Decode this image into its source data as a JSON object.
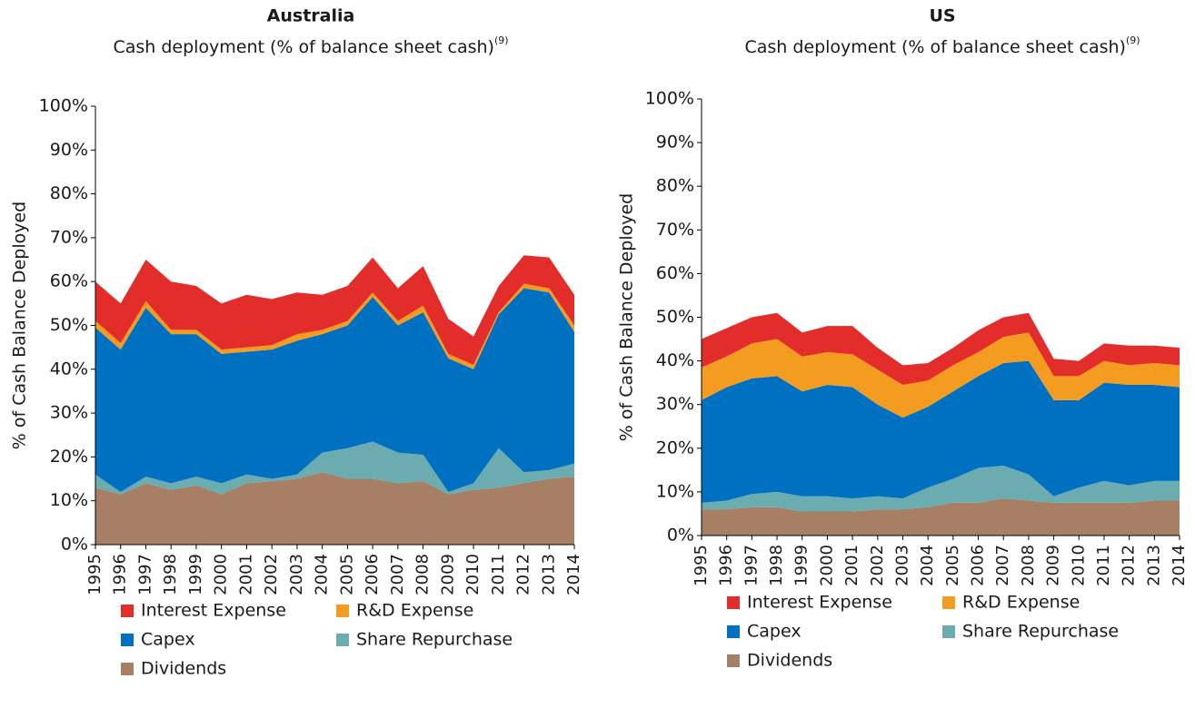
{
  "chart_data": [
    {
      "type": "stacked_area",
      "title": "Australia",
      "subtitle": "Cash deployment (% of balance sheet cash)",
      "subtitle_note": "(9)",
      "ylabel": "% of Cash Balance Deployed",
      "categories": [
        "1995",
        "1996",
        "1997",
        "1998",
        "1999",
        "2000",
        "2001",
        "2002",
        "2003",
        "2004",
        "2005",
        "2006",
        "2007",
        "2008",
        "2009",
        "2010",
        "2011",
        "2012",
        "2013",
        "2014"
      ],
      "series": [
        {
          "name": "Interest Expense",
          "color": "#e32d2a",
          "values": [
            9,
            9,
            9.5,
            11,
            10,
            10.5,
            12,
            10.5,
            9.5,
            8,
            8,
            8,
            7.5,
            9,
            8,
            6.5,
            6,
            6.5,
            7,
            7
          ]
        },
        {
          "name": "R&D Expense",
          "color": "#f39c1f",
          "values": [
            1.5,
            1.5,
            1.5,
            1,
            1,
            1,
            1,
            1,
            1.5,
            1,
            1,
            1,
            1,
            1.5,
            1,
            1,
            0.5,
            1,
            1,
            1.5
          ]
        },
        {
          "name": "Capex",
          "color": "#0070c0",
          "values": [
            33.5,
            32.5,
            38.5,
            34,
            32.5,
            29.5,
            28,
            29.5,
            30.5,
            27,
            28,
            33,
            29,
            32.5,
            30.5,
            26,
            30.5,
            42,
            40.5,
            30
          ]
        },
        {
          "name": "Share Repurchase",
          "color": "#6aacb0",
          "values": [
            3,
            0.5,
            1.5,
            1.5,
            2,
            2.5,
            2,
            0.5,
            1,
            4.5,
            7,
            8.5,
            7,
            6,
            0.5,
            1.5,
            9,
            2.5,
            2,
            3
          ]
        },
        {
          "name": "Dividends",
          "color": "#a77f65",
          "values": [
            13,
            11.5,
            14,
            12.5,
            13.5,
            11.5,
            14,
            14.5,
            15,
            16.5,
            15,
            15,
            14,
            14.5,
            11.5,
            12.5,
            13,
            14,
            15,
            15.5
          ]
        }
      ],
      "ylim": [
        0,
        100
      ],
      "yticks": [
        {
          "value": 0,
          "label": "0%"
        },
        {
          "value": 10,
          "label": "10%"
        },
        {
          "value": 20,
          "label": "20%"
        },
        {
          "value": 30,
          "label": "30%"
        },
        {
          "value": 40,
          "label": "40%"
        },
        {
          "value": 50,
          "label": "50%"
        },
        {
          "value": 60,
          "label": "60%"
        },
        {
          "value": 70,
          "label": "70%"
        },
        {
          "value": 80,
          "label": "80%"
        },
        {
          "value": 90,
          "label": "90%"
        },
        {
          "value": 100,
          "label": "100%"
        }
      ],
      "legend": "bottom"
    },
    {
      "type": "stacked_area",
      "title": "US",
      "subtitle": "Cash deployment (% of balance sheet cash)",
      "subtitle_note": "(9)",
      "ylabel": "% of Cash Balance Deployed",
      "categories": [
        "1995",
        "1996",
        "1997",
        "1998",
        "1999",
        "2000",
        "2001",
        "2002",
        "2003",
        "2004",
        "2005",
        "2006",
        "2007",
        "2008",
        "2009",
        "2010",
        "2011",
        "2012",
        "2013",
        "2014"
      ],
      "series": [
        {
          "name": "Interest Expense",
          "color": "#e32d2a",
          "values": [
            6.5,
            6.5,
            6,
            6,
            5.5,
            6,
            6.5,
            5,
            4.5,
            4,
            4,
            5,
            4.5,
            4.5,
            4,
            3.5,
            4,
            4.5,
            4,
            4
          ]
        },
        {
          "name": "R&D Expense",
          "color": "#f39c1f",
          "values": [
            7.5,
            7,
            8,
            8.5,
            8,
            7.5,
            7.5,
            8,
            7.5,
            6,
            6,
            5.5,
            6,
            6.5,
            5.5,
            5.5,
            5,
            4.5,
            5,
            5
          ]
        },
        {
          "name": "Capex",
          "color": "#0070c0",
          "values": [
            23.5,
            26,
            26.5,
            26.5,
            24,
            25.5,
            25.5,
            21,
            18.5,
            18.5,
            20,
            21,
            23.5,
            26,
            22,
            20,
            22.5,
            23,
            22,
            21.5
          ]
        },
        {
          "name": "Share Repurchase",
          "color": "#6aacb0",
          "values": [
            1.5,
            2,
            3,
            3.5,
            3.5,
            3.5,
            3,
            3,
            2.5,
            4.5,
            5.5,
            8,
            7.5,
            6,
            1.5,
            3.5,
            5,
            4,
            4.5,
            4.5
          ]
        },
        {
          "name": "Dividends",
          "color": "#a77f65",
          "values": [
            6,
            6,
            6.5,
            6.5,
            5.5,
            5.5,
            5.5,
            6,
            6,
            6.5,
            7.5,
            7.5,
            8.5,
            8,
            7.5,
            7.5,
            7.5,
            7.5,
            8,
            8
          ]
        }
      ],
      "ylim": [
        0,
        100
      ],
      "yticks": [
        {
          "value": 0,
          "label": "0%"
        },
        {
          "value": 10,
          "label": "10%"
        },
        {
          "value": 20,
          "label": "20%"
        },
        {
          "value": 30,
          "label": "30%"
        },
        {
          "value": 40,
          "label": "40%"
        },
        {
          "value": 50,
          "label": "50%"
        },
        {
          "value": 60,
          "label": "60%"
        },
        {
          "value": 70,
          "label": "70%"
        },
        {
          "value": 80,
          "label": "80%"
        },
        {
          "value": 90,
          "label": "90%"
        },
        {
          "value": 100,
          "label": "100%"
        }
      ],
      "legend": "bottom"
    }
  ]
}
